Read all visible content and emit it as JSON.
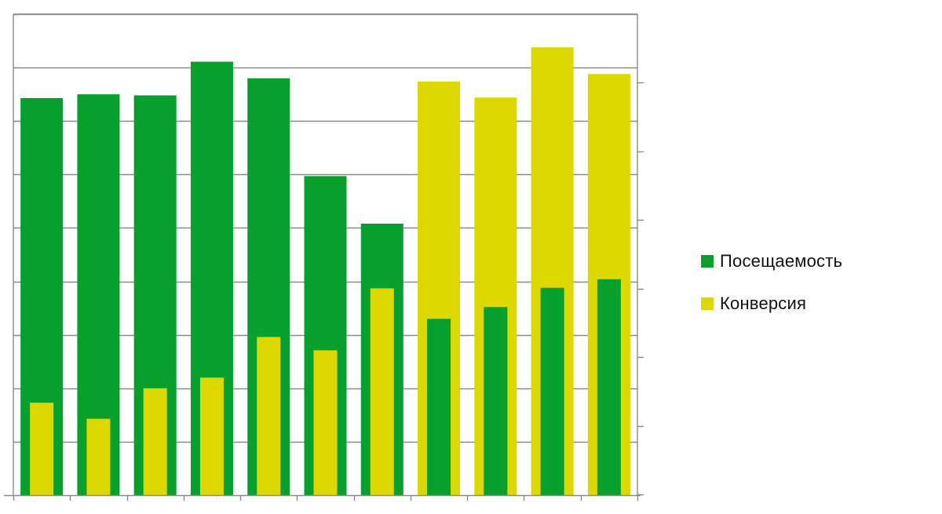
{
  "chart_data": {
    "type": "bar",
    "categories": [
      "",
      "",
      "",
      "",
      "",
      "",
      "",
      "",
      "",
      "",
      ""
    ],
    "series": [
      {
        "name": "Посещаемость",
        "color": "#08a02c",
        "values": [
          74.3,
          75.0,
          74.8,
          81.1,
          78.0,
          59.7,
          50.8,
          33.0,
          35.2,
          38.8,
          40.4
        ]
      },
      {
        "name": "Конверсия",
        "color": "#dcd800",
        "values": [
          17.3,
          14.3,
          20.0,
          22.0,
          29.6,
          27.1,
          38.7,
          77.4,
          74.4,
          83.8,
          78.8
        ]
      }
    ],
    "ylim": [
      0,
      90
    ],
    "grid": true,
    "legend_position": "right",
    "title": "",
    "xlabel": "",
    "ylabel": ""
  }
}
